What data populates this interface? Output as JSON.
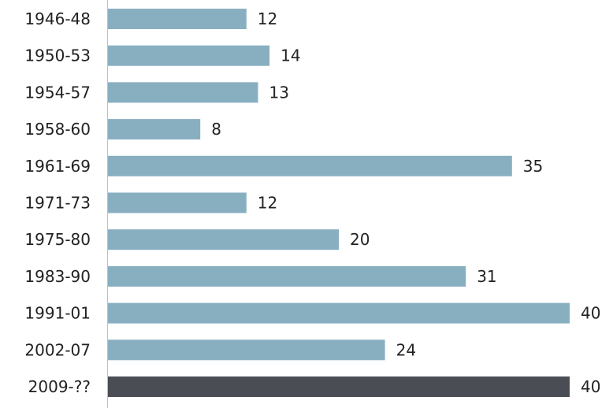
{
  "chart_data": {
    "type": "bar",
    "orientation": "horizontal",
    "categories": [
      "1946-48",
      "1950-53",
      "1954-57",
      "1958-60",
      "1961-69",
      "1971-73",
      "1975-80",
      "1983-90",
      "1991-01",
      "2002-07",
      "2009-??"
    ],
    "values": [
      12,
      14,
      13,
      8,
      35,
      12,
      20,
      31,
      40,
      24,
      40
    ],
    "value_labels": [
      "12",
      "14",
      "13",
      "8",
      "35",
      "12",
      "20",
      "31",
      "40",
      "24",
      "40"
    ],
    "title": "",
    "xlabel": "",
    "ylabel": "",
    "xlim": [
      0,
      40
    ],
    "grid": false,
    "colors": {
      "bar": "#88afc0",
      "highlight_bar": "#4a4e54",
      "axis": "#bfbfbf"
    },
    "highlight_index": 10
  }
}
